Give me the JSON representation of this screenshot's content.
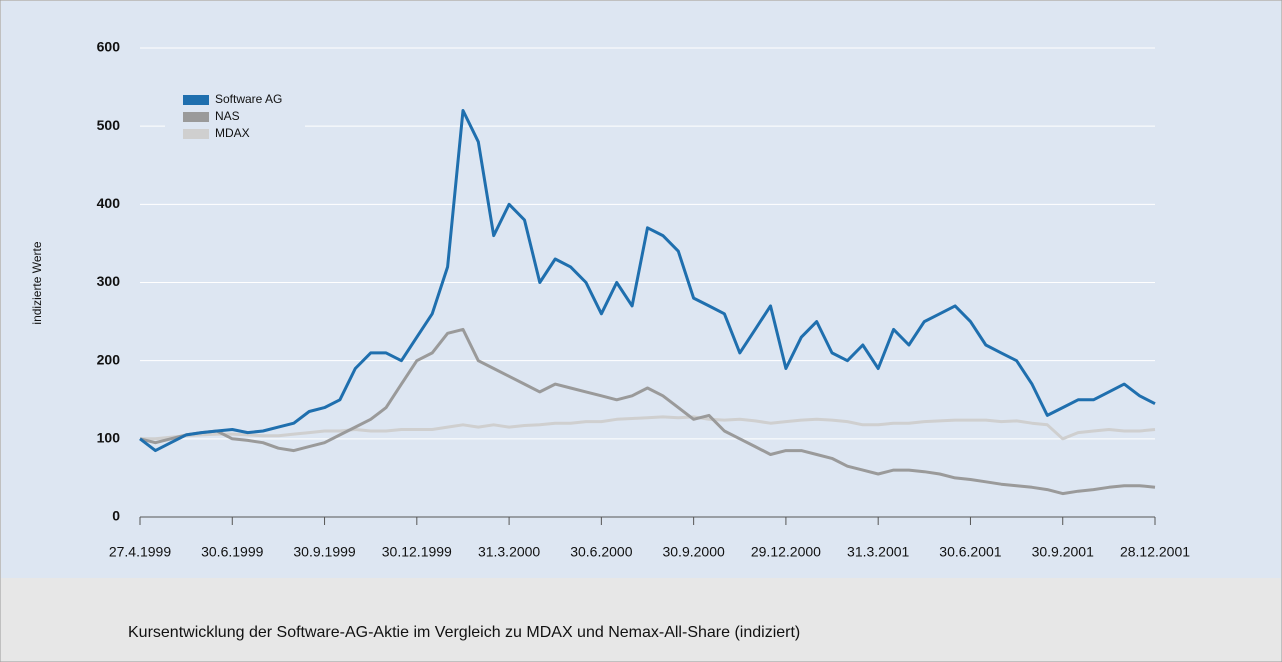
{
  "chart_data": {
    "type": "line",
    "y_label": "indizierte Werte",
    "caption": "Kursentwicklung der Software-AG-Aktie im Vergleich zu MDAX und Nemax-All-Share (indiziert)",
    "categories": [
      "27.4.1999",
      null,
      null,
      null,
      null,
      null,
      "30.6.1999",
      null,
      null,
      null,
      null,
      null,
      "30.9.1999",
      null,
      null,
      null,
      null,
      null,
      "30.12.1999",
      null,
      null,
      null,
      null,
      null,
      "31.3.2000",
      null,
      null,
      null,
      null,
      null,
      "30.6.2000",
      null,
      null,
      null,
      null,
      null,
      "30.9.2000",
      null,
      null,
      null,
      null,
      null,
      "29.12.2000",
      null,
      null,
      null,
      null,
      null,
      "31.3.2001",
      null,
      null,
      null,
      null,
      null,
      "30.6.2001",
      null,
      null,
      null,
      null,
      null,
      "30.9.2001",
      null,
      null,
      null,
      null,
      null,
      "28.12.2001"
    ],
    "series": [
      {
        "name": "Software AG",
        "color": "#1f6fae",
        "values": [
          100,
          85,
          95,
          105,
          108,
          110,
          112,
          108,
          110,
          115,
          120,
          135,
          140,
          150,
          190,
          210,
          210,
          200,
          230,
          260,
          320,
          520,
          480,
          360,
          400,
          380,
          300,
          330,
          320,
          300,
          260,
          300,
          270,
          370,
          360,
          340,
          280,
          270,
          260,
          210,
          240,
          270,
          190,
          230,
          250,
          210,
          200,
          220,
          190,
          240,
          220,
          250,
          260,
          270,
          250,
          220,
          210,
          200,
          170,
          130,
          140,
          150,
          150,
          160,
          170,
          155,
          145
        ]
      },
      {
        "name": "NAS",
        "color": "#9a9a9a",
        "values": [
          100,
          95,
          100,
          105,
          108,
          110,
          100,
          98,
          95,
          88,
          85,
          90,
          95,
          105,
          115,
          125,
          140,
          170,
          200,
          210,
          235,
          240,
          200,
          190,
          180,
          170,
          160,
          170,
          165,
          160,
          155,
          150,
          155,
          165,
          155,
          140,
          125,
          130,
          110,
          100,
          90,
          80,
          85,
          85,
          80,
          75,
          65,
          60,
          55,
          60,
          60,
          58,
          55,
          50,
          48,
          45,
          42,
          40,
          38,
          35,
          30,
          33,
          35,
          38,
          40,
          40,
          38
        ]
      },
      {
        "name": "MDAX",
        "color": "#cfcfcf",
        "values": [
          100,
          100,
          102,
          104,
          105,
          106,
          106,
          105,
          104,
          104,
          106,
          108,
          110,
          110,
          112,
          110,
          110,
          112,
          112,
          112,
          115,
          118,
          115,
          118,
          115,
          117,
          118,
          120,
          120,
          122,
          122,
          125,
          126,
          127,
          128,
          127,
          128,
          125,
          124,
          125,
          123,
          120,
          122,
          124,
          125,
          124,
          122,
          118,
          118,
          120,
          120,
          122,
          123,
          124,
          124,
          124,
          122,
          123,
          120,
          118,
          100,
          108,
          110,
          112,
          110,
          110,
          112
        ]
      }
    ],
    "ylim": [
      0,
      600
    ],
    "yticks": [
      0,
      100,
      200,
      300,
      400,
      500,
      600
    ],
    "grid": true,
    "legend": "upper left"
  }
}
